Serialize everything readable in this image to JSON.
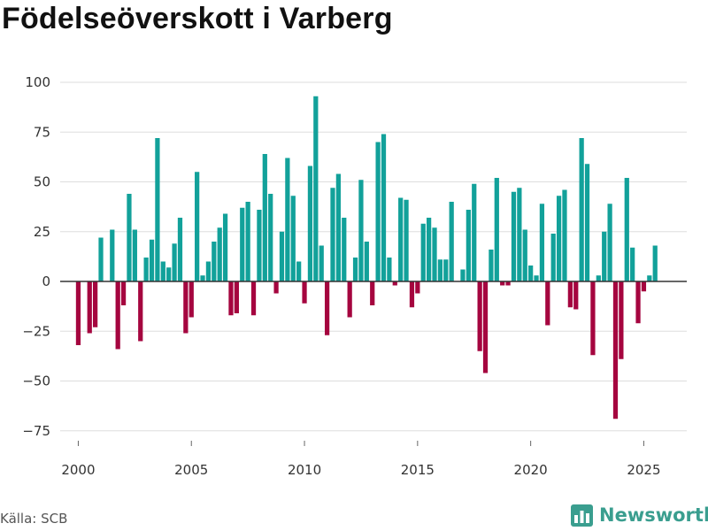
{
  "title": "Födelseöverskott i Varberg",
  "source": "Källa: SCB",
  "brand": {
    "name": "Newsworthy",
    "icon": "newsworthy-logo-icon"
  },
  "colors": {
    "positive": "#12a19a",
    "negative": "#a5053f",
    "grid": "#dddddd",
    "zero": "#333333",
    "brand": "#3a9e8f"
  },
  "chart_data": {
    "type": "bar",
    "title": "Födelseöverskott i Varberg",
    "xlabel": "",
    "ylabel": "",
    "series": [
      {
        "name": "Födelseöverskott",
        "interval": "quarter"
      }
    ],
    "x_start": 2000,
    "x_step": 0.25,
    "xlim": [
      1999.2,
      2026.9
    ],
    "ylim": [
      -80,
      100
    ],
    "yticks": [
      100,
      75,
      50,
      25,
      0,
      -25,
      -50,
      -75
    ],
    "ytick_labels": [
      "100",
      "75",
      "50",
      "25",
      "0",
      "−25",
      "−50",
      "−75"
    ],
    "xticks": [
      2000,
      2005,
      2010,
      2015,
      2020,
      2025
    ],
    "xtick_labels": [
      "2000",
      "2005",
      "2010",
      "2015",
      "2020",
      "2025"
    ],
    "values": [
      -32,
      0,
      -26,
      -23,
      22,
      0,
      26,
      -34,
      -12,
      44,
      26,
      -30,
      12,
      21,
      72,
      10,
      7,
      19,
      32,
      -26,
      -18,
      55,
      3,
      10,
      20,
      27,
      34,
      -17,
      -16,
      37,
      40,
      -17,
      36,
      64,
      44,
      -6,
      25,
      62,
      43,
      10,
      -11,
      58,
      93,
      18,
      -27,
      47,
      54,
      32,
      -18,
      12,
      51,
      20,
      -12,
      70,
      74,
      12,
      -2,
      42,
      41,
      -13,
      -6,
      29,
      32,
      27,
      11,
      11,
      40,
      0,
      6,
      36,
      49,
      -35,
      -46,
      16,
      52,
      -2,
      -2,
      45,
      47,
      26,
      8,
      3,
      39,
      -22,
      24,
      43,
      46,
      -13,
      -14,
      72,
      59,
      -37,
      3,
      25,
      39,
      -69,
      -39,
      52,
      17,
      -21,
      -5,
      3,
      18
    ]
  }
}
